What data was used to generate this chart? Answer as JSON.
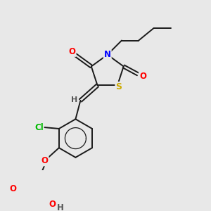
{
  "background_color": "#e8e8e8",
  "bond_color": "#1a1a1a",
  "atom_colors": {
    "O": "#ff0000",
    "N": "#0000ff",
    "S": "#ccaa00",
    "Cl": "#00bb00",
    "H": "#555555",
    "C": "#1a1a1a"
  },
  "figsize": [
    3.0,
    3.0
  ],
  "dpi": 100
}
